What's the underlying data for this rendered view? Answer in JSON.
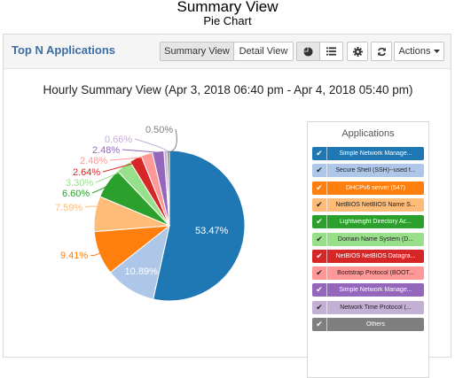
{
  "page": {
    "title": "Summary View",
    "subtitle": "Pie Chart"
  },
  "panel": {
    "title": "Top N Applications",
    "summary_view_label": "Summary View",
    "detail_view_label": "Detail View",
    "actions_label": "Actions"
  },
  "icons": {
    "pie": "pie-chart-icon",
    "list": "list-icon",
    "settings": "gear-icon",
    "refresh": "refresh-icon",
    "caret": "caret-down-icon",
    "check": "check-icon"
  },
  "chart_data": {
    "type": "pie",
    "title": "Hourly Summary View (Apr 3, 2018 06:40 pm - Apr 4, 2018 05:40 pm)",
    "categories": [
      "Simple Network Manage...",
      "Secure Shell (SSH)--used f...",
      "DHCPv6 server (547)",
      "NetBIOS NetBIOS Name S...",
      "Lightweight Directory Ac...",
      "Domain Name System (D...",
      "NetBIOS NetBIOS Datagra...",
      "Bootstrap Protocol (BOOT...",
      "Simple Network Manage...",
      "Network Time Protocol (...",
      "Others"
    ],
    "values": [
      53.47,
      10.89,
      9.41,
      7.59,
      6.6,
      3.3,
      2.64,
      2.48,
      2.48,
      0.66,
      0.5
    ],
    "labels": [
      "53.47%",
      "10.89%",
      "9.41%",
      "7.59%",
      "6.60%",
      "3.30%",
      "2.64%",
      "2.48%",
      "2.48%",
      "0.66%",
      "0.50%"
    ],
    "colors": [
      "#1f77b4",
      "#aec7e8",
      "#ff7f0e",
      "#ffbb78",
      "#2ca02c",
      "#98df8a",
      "#d62728",
      "#ff9896",
      "#9467bd",
      "#c5b0d5",
      "#7f7f7f"
    ],
    "legend_title": "Applications",
    "legend_placement": "right"
  }
}
